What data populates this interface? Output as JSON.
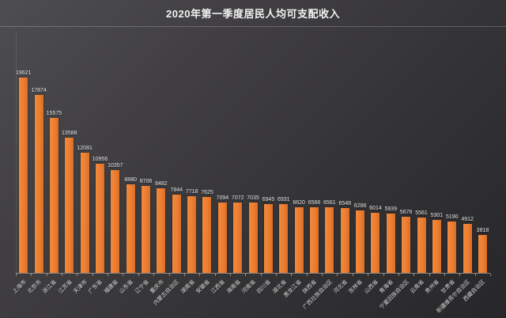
{
  "chart_data": {
    "type": "bar",
    "title": "2020年第一季度居民人均可支配收入",
    "categories": [
      "上海市",
      "北京市",
      "浙江省",
      "江苏省",
      "天津市",
      "广东省",
      "福建省",
      "山东省",
      "辽宁省",
      "重庆市",
      "内蒙古自治区",
      "湖南省",
      "安徽省",
      "江西省",
      "海南省",
      "河南省",
      "四川省",
      "湖北省",
      "黑龙江省",
      "陕西省",
      "广西壮族自治区",
      "河北省",
      "吉林省",
      "山西省",
      "青海省",
      "宁夏回族自治区",
      "云南省",
      "贵州省",
      "甘肃省",
      "新疆维吾尔自治区",
      "西藏自治区"
    ],
    "values": [
      19621,
      17874,
      15575,
      13588,
      12081,
      10956,
      10357,
      8880,
      8706,
      8482,
      7844,
      7718,
      7625,
      7094,
      7072,
      7035,
      6945,
      6931,
      6620,
      6566,
      6561,
      6548,
      6286,
      6014,
      5939,
      5676,
      5561,
      5301,
      5190,
      4912,
      3818
    ],
    "xlabel": "",
    "ylabel": "",
    "ylim": [
      0,
      20000
    ],
    "grid": false,
    "legend_position": "none",
    "value_labels_shown": true,
    "category_label_rotation_deg": 45,
    "colors": {
      "bar": "#ED7D31",
      "background_top_left": "#4E4D4F",
      "background_bottom_right": "#272629",
      "title_text": "#F2F2F2",
      "value_label_text": "#E6E6E6",
      "category_label_text": "#DCDCDC",
      "axis_line": "#8F8F8F"
    }
  }
}
